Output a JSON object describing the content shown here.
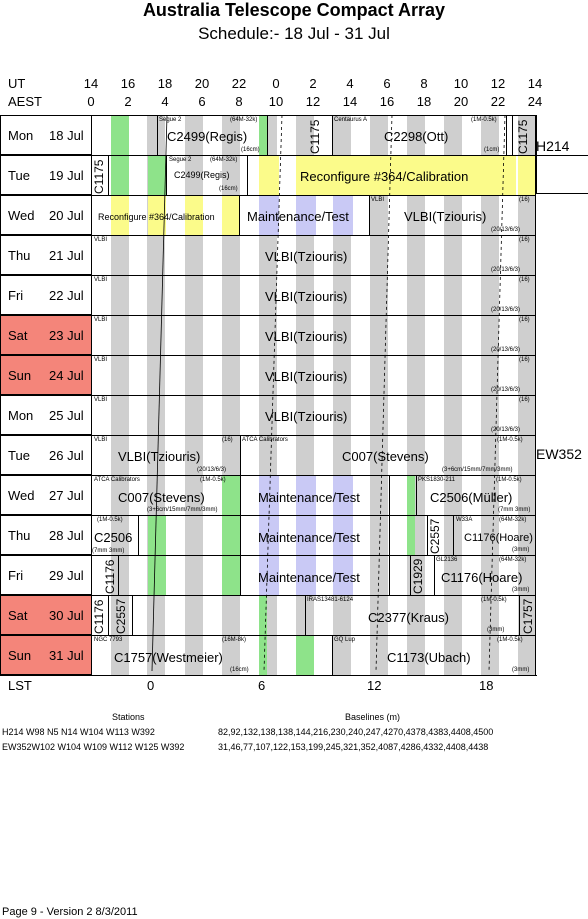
{
  "header": {
    "title": "Australia Telescope Compact Array",
    "subtitle": "Schedule:- 18 Jul - 31 Jul"
  },
  "axes": {
    "ut_label": "UT",
    "aest_label": "AEST",
    "lst_label": "LST",
    "ut_ticks": [
      "14",
      "16",
      "18",
      "20",
      "22",
      "0",
      "2",
      "4",
      "6",
      "8",
      "10",
      "12",
      "14"
    ],
    "aest_ticks": [
      "0",
      "2",
      "4",
      "6",
      "8",
      "10",
      "12",
      "14",
      "16",
      "18",
      "20",
      "22",
      "24"
    ],
    "lst_ticks": [
      "0",
      "6",
      "12",
      "18"
    ]
  },
  "rows": [
    {
      "day": "Mon",
      "date": "18 Jul",
      "weekend": false
    },
    {
      "day": "Tue",
      "date": "19 Jul",
      "weekend": false
    },
    {
      "day": "Wed",
      "date": "20 Jul",
      "weekend": false
    },
    {
      "day": "Thu",
      "date": "21 Jul",
      "weekend": false
    },
    {
      "day": "Fri",
      "date": "22 Jul",
      "weekend": false
    },
    {
      "day": "Sat",
      "date": "23 Jul",
      "weekend": true
    },
    {
      "day": "Sun",
      "date": "24 Jul",
      "weekend": true
    },
    {
      "day": "Mon",
      "date": "25 Jul",
      "weekend": false
    },
    {
      "day": "Tue",
      "date": "26 Jul",
      "weekend": false
    },
    {
      "day": "Wed",
      "date": "27 Jul",
      "weekend": false
    },
    {
      "day": "Thu",
      "date": "28 Jul",
      "weekend": false
    },
    {
      "day": "Fri",
      "date": "29 Jul",
      "weekend": false
    },
    {
      "day": "Sat",
      "date": "30 Jul",
      "weekend": true
    },
    {
      "day": "Sun",
      "date": "31 Jul",
      "weekend": true
    }
  ],
  "configs": [
    "H214",
    "EW352"
  ],
  "entries": {
    "r0a": "C2499(Regis)",
    "r0a_src": "Segue 2",
    "r0a_band": "(64M-32k)",
    "r0a_rcv": "(16cm)",
    "r0b": "C1175",
    "r0c": "C2298(Ott)",
    "r0c_src": "Centaurus A",
    "r0c_band": "(1M-0.5k)",
    "r0c_rcv": "(1cm)",
    "r0d": "C1175",
    "r1a": "C1175",
    "r1b": "C2499(Regis)",
    "r1b_src": "Segue 2",
    "r1b_band": "(64M-32k)",
    "r1b_rcv": "(16cm)",
    "r1c": "Reconfigure #364/Calibration",
    "r2a": "Reconfigure #364/Calibration",
    "r2b": "Maintenance/Test",
    "r2c": "VLBI(Tziouris)",
    "r2c_src": "VLBI",
    "r2c_band": "(16)",
    "r2c_rcv": "(20/13/6/3)",
    "vlbi": "VLBI(Tziouris)",
    "vlbi_src": "VLBI",
    "vlbi_band": "(16)",
    "vlbi_rcv": "(20/13/6/3)",
    "r8a": "VLBI(Tziouris)",
    "r8a_src": "VLBI",
    "r8a_band": "(16)",
    "r8a_rcv": "(20/13/6/3)",
    "r8b": "C007(Stevens)",
    "r8b_src": "ATCA Calibrators",
    "r8b_band": "(1M-0.5k)",
    "r8b_rcv": "(3+6cm/15mm/7mm/3mm)",
    "r9a": "C007(Stevens)",
    "r9a_src": "ATCA Calibrators",
    "r9a_band": "(1M-0.5k)",
    "r9a_rcv": "(3+6cm/15mm/7mm/3mm)",
    "r9b": "Maintenance/Test",
    "r9c": "C2506(Müller)",
    "r9c_src": "PKS1830-211",
    "r9c_band": "(1M-0.5k)",
    "r9c_rcv": "(7mm 3mm)",
    "r10a": "C2506",
    "r10a_band": "(1M-0.5k)",
    "r10a_rcv": "(7mm 3mm)",
    "r10b": "Maintenance/Test",
    "r10c": "C2557",
    "r10d": "C1176(Hoare)",
    "r10d_src": "W33A",
    "r10d_band": "(64M-32k)",
    "r10d_rcv": "(3mm)",
    "r11a": "C1176",
    "r11b": "Maintenance/Test",
    "r11c": "C1929",
    "r11d": "C1176(Hoare)",
    "r11d_src": "GL2136",
    "r11d_band": "(64M-32k)",
    "r11d_rcv": "(3mm)",
    "r12a": "C1176",
    "r12b": "C2557",
    "r12c": "C2377(Kraus)",
    "r12c_src": "IRAS13481-6124",
    "r12c_band": "(1M-0.5k)",
    "r12c_rcv": "(3mm)",
    "r12d": "C1757",
    "r13a": "C1757(Westmeier)",
    "r13a_src": "NGC 7793",
    "r13a_band": "(16M-8k)",
    "r13a_rcv": "(16cm)",
    "r13b": "C1173(Ubach)",
    "r13b_src": "GQ Lup",
    "r13b_band": "(1M-0.5k)",
    "r13b_rcv": "(3mm)"
  },
  "footer": {
    "stations_title": "Stations",
    "baselines_title": "Baselines (m)",
    "h214_stations": "H214   W98 N5 N14 W104 W113 W392",
    "h214_baselines": "82,92,132,138,138,144,216,230,240,247,4270,4378,4383,4408,4500",
    "ew352_stations": "EW352W102 W104 W109 W112 W125 W392",
    "ew352_baselines": "31,46,77,107,122,153,199,245,321,352,4087,4286,4332,4408,4438",
    "page": "Page 9 - Version 2  8/3/2011"
  }
}
